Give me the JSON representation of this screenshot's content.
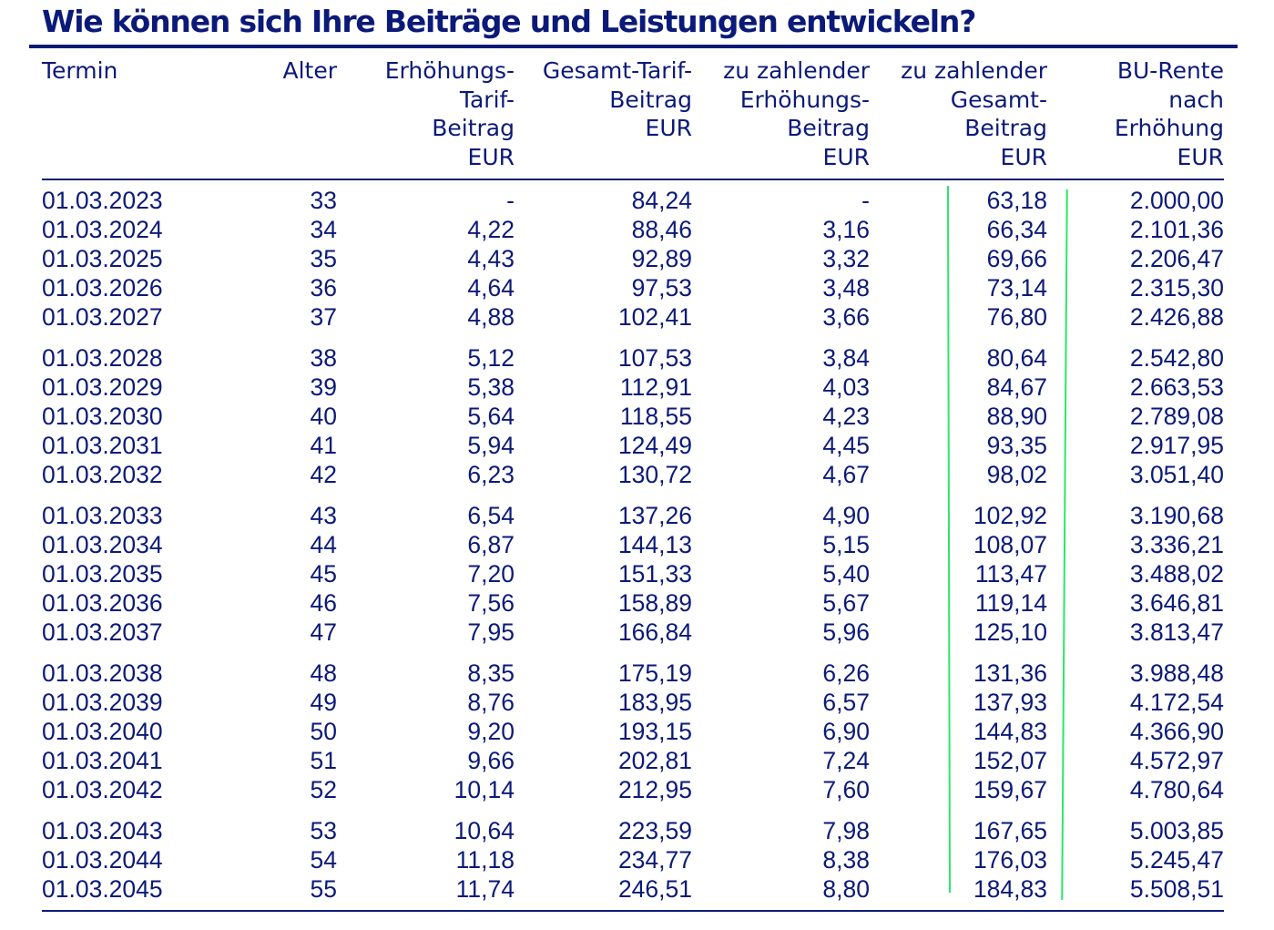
{
  "title": "Wie können sich Ihre Beiträge und Leistungen entwickeln?",
  "columns": [
    {
      "key": "termin",
      "label": "Termin"
    },
    {
      "key": "alter",
      "label": "Alter"
    },
    {
      "key": "erhoehungs_tarif_beitrag",
      "label": "Erhöhungs-\nTarif-\nBeitrag\nEUR"
    },
    {
      "key": "gesamt_tarif_beitrag",
      "label": "Gesamt-Tarif-\nBeitrag\nEUR"
    },
    {
      "key": "zu_zahlender_erhoehungs_beitrag",
      "label": "zu zahlender\nErhöhungs-\nBeitrag\nEUR"
    },
    {
      "key": "zu_zahlender_gesamt_beitrag",
      "label": "zu zahlender\nGesamt-\nBeitrag\nEUR"
    },
    {
      "key": "bu_rente_nach_erhoehung",
      "label": "BU-Rente\nnach\nErhöhung\nEUR"
    }
  ],
  "rows": [
    [
      "01.03.2023",
      "33",
      "-",
      "84,24",
      "-",
      "63,18",
      "2.000,00"
    ],
    [
      "01.03.2024",
      "34",
      "4,22",
      "88,46",
      "3,16",
      "66,34",
      "2.101,36"
    ],
    [
      "01.03.2025",
      "35",
      "4,43",
      "92,89",
      "3,32",
      "69,66",
      "2.206,47"
    ],
    [
      "01.03.2026",
      "36",
      "4,64",
      "97,53",
      "3,48",
      "73,14",
      "2.315,30"
    ],
    [
      "01.03.2027",
      "37",
      "4,88",
      "102,41",
      "3,66",
      "76,80",
      "2.426,88"
    ],
    [
      "01.03.2028",
      "38",
      "5,12",
      "107,53",
      "3,84",
      "80,64",
      "2.542,80"
    ],
    [
      "01.03.2029",
      "39",
      "5,38",
      "112,91",
      "4,03",
      "84,67",
      "2.663,53"
    ],
    [
      "01.03.2030",
      "40",
      "5,64",
      "118,55",
      "4,23",
      "88,90",
      "2.789,08"
    ],
    [
      "01.03.2031",
      "41",
      "5,94",
      "124,49",
      "4,45",
      "93,35",
      "2.917,95"
    ],
    [
      "01.03.2032",
      "42",
      "6,23",
      "130,72",
      "4,67",
      "98,02",
      "3.051,40"
    ],
    [
      "01.03.2033",
      "43",
      "6,54",
      "137,26",
      "4,90",
      "102,92",
      "3.190,68"
    ],
    [
      "01.03.2034",
      "44",
      "6,87",
      "144,13",
      "5,15",
      "108,07",
      "3.336,21"
    ],
    [
      "01.03.2035",
      "45",
      "7,20",
      "151,33",
      "5,40",
      "113,47",
      "3.488,02"
    ],
    [
      "01.03.2036",
      "46",
      "7,56",
      "158,89",
      "5,67",
      "119,14",
      "3.646,81"
    ],
    [
      "01.03.2037",
      "47",
      "7,95",
      "166,84",
      "5,96",
      "125,10",
      "3.813,47"
    ],
    [
      "01.03.2038",
      "48",
      "8,35",
      "175,19",
      "6,26",
      "131,36",
      "3.988,48"
    ],
    [
      "01.03.2039",
      "49",
      "8,76",
      "183,95",
      "6,57",
      "137,93",
      "4.172,54"
    ],
    [
      "01.03.2040",
      "50",
      "9,20",
      "193,15",
      "6,90",
      "144,83",
      "4.366,90"
    ],
    [
      "01.03.2041",
      "51",
      "9,66",
      "202,81",
      "7,24",
      "152,07",
      "4.572,97"
    ],
    [
      "01.03.2042",
      "52",
      "10,14",
      "212,95",
      "7,60",
      "159,67",
      "4.780,64"
    ],
    [
      "01.03.2043",
      "53",
      "10,64",
      "223,59",
      "7,98",
      "167,65",
      "5.003,85"
    ],
    [
      "01.03.2044",
      "54",
      "11,18",
      "234,77",
      "8,38",
      "176,03",
      "5.245,47"
    ],
    [
      "01.03.2045",
      "55",
      "11,74",
      "246,51",
      "8,80",
      "184,83",
      "5.508,51"
    ]
  ],
  "colors": {
    "text": "#0b1a78",
    "highlight_marks": "#2ee56a"
  }
}
